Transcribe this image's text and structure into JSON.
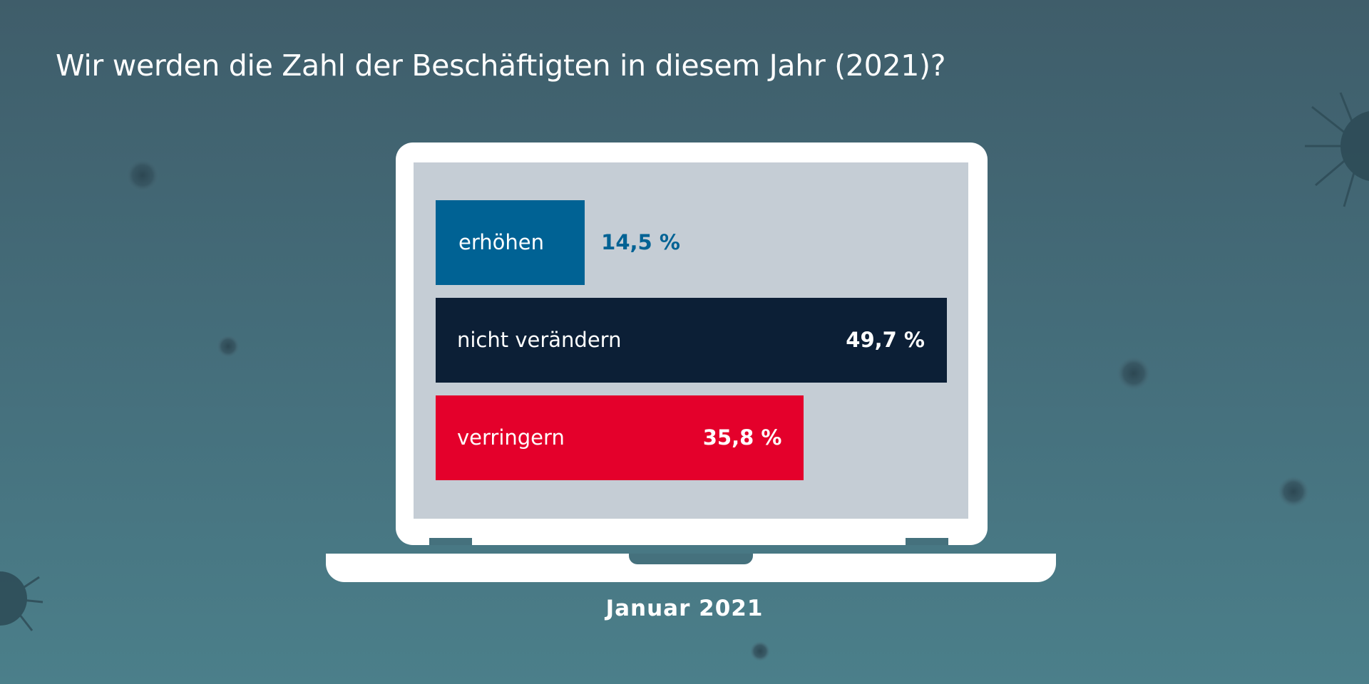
{
  "chart_data": {
    "type": "bar",
    "orientation": "horizontal",
    "title": "Wir werden die Zahl der Beschäftigten in diesem Jahr (2021)?",
    "categories": [
      "erhöhen",
      "nicht verändern",
      "verringern"
    ],
    "values": [
      14.5,
      49.7,
      35.8
    ],
    "value_labels": [
      "14,5 %",
      "49,7 %",
      "35,8 %"
    ],
    "colors": [
      "#006294",
      "#0c1f36",
      "#e4002b"
    ],
    "value_label_colors": [
      "#006294",
      "#ffffff",
      "#ffffff"
    ],
    "xlim": [
      0,
      49.7
    ],
    "footer": "Januar 2021"
  },
  "colors": {
    "screen": "#c5cdd5",
    "frame": "#ffffff"
  },
  "icons": [
    "virus-icon",
    "laptop-icon"
  ]
}
